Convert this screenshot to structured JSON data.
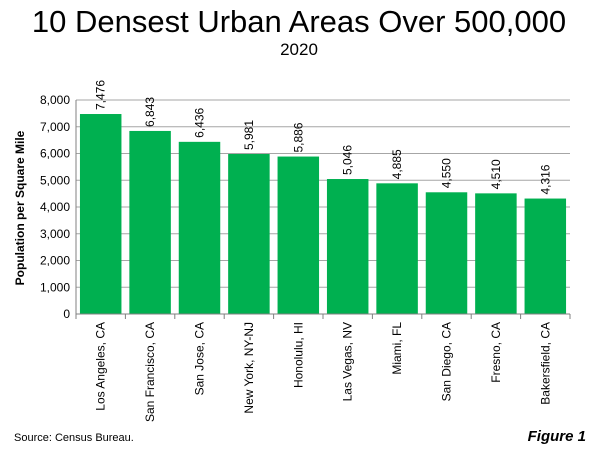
{
  "title": "10 Densest Urban Areas Over 500,000",
  "subtitle": "2020",
  "source": "Source: Census Bureau.",
  "figure_label": "Figure 1",
  "colors": {
    "bar": "#00B050",
    "grid": "#A6A6A6",
    "axis": "#808080"
  },
  "chart_data": {
    "type": "bar",
    "title": "10 Densest Urban Areas Over 500,000",
    "subtitle": "2020",
    "xlabel": "",
    "ylabel": "Population per Square Mile",
    "ylim": [
      0,
      8000
    ],
    "yticks": [
      0,
      1000,
      2000,
      3000,
      4000,
      5000,
      6000,
      7000,
      8000
    ],
    "ytick_labels": [
      "0",
      "1,000",
      "2,000",
      "3,000",
      "4,000",
      "5,000",
      "6,000",
      "7,000",
      "8,000"
    ],
    "grid": true,
    "categories": [
      "Los Angeles, CA",
      "San Francisco, CA",
      "San Jose, CA",
      "New York, NY-NJ",
      "Honolulu, HI",
      "Las Vegas, NV",
      "Miami, FL",
      "San Diego, CA",
      "Fresno, CA",
      "Bakersfield, CA"
    ],
    "values": [
      7476,
      6843,
      6436,
      5981,
      5886,
      5046,
      4885,
      4550,
      4510,
      4316
    ],
    "value_labels": [
      "7,476",
      "6,843",
      "6,436",
      "5,981",
      "5,886",
      "5,046",
      "4,885",
      "4,550",
      "4,510",
      "4,316"
    ]
  }
}
